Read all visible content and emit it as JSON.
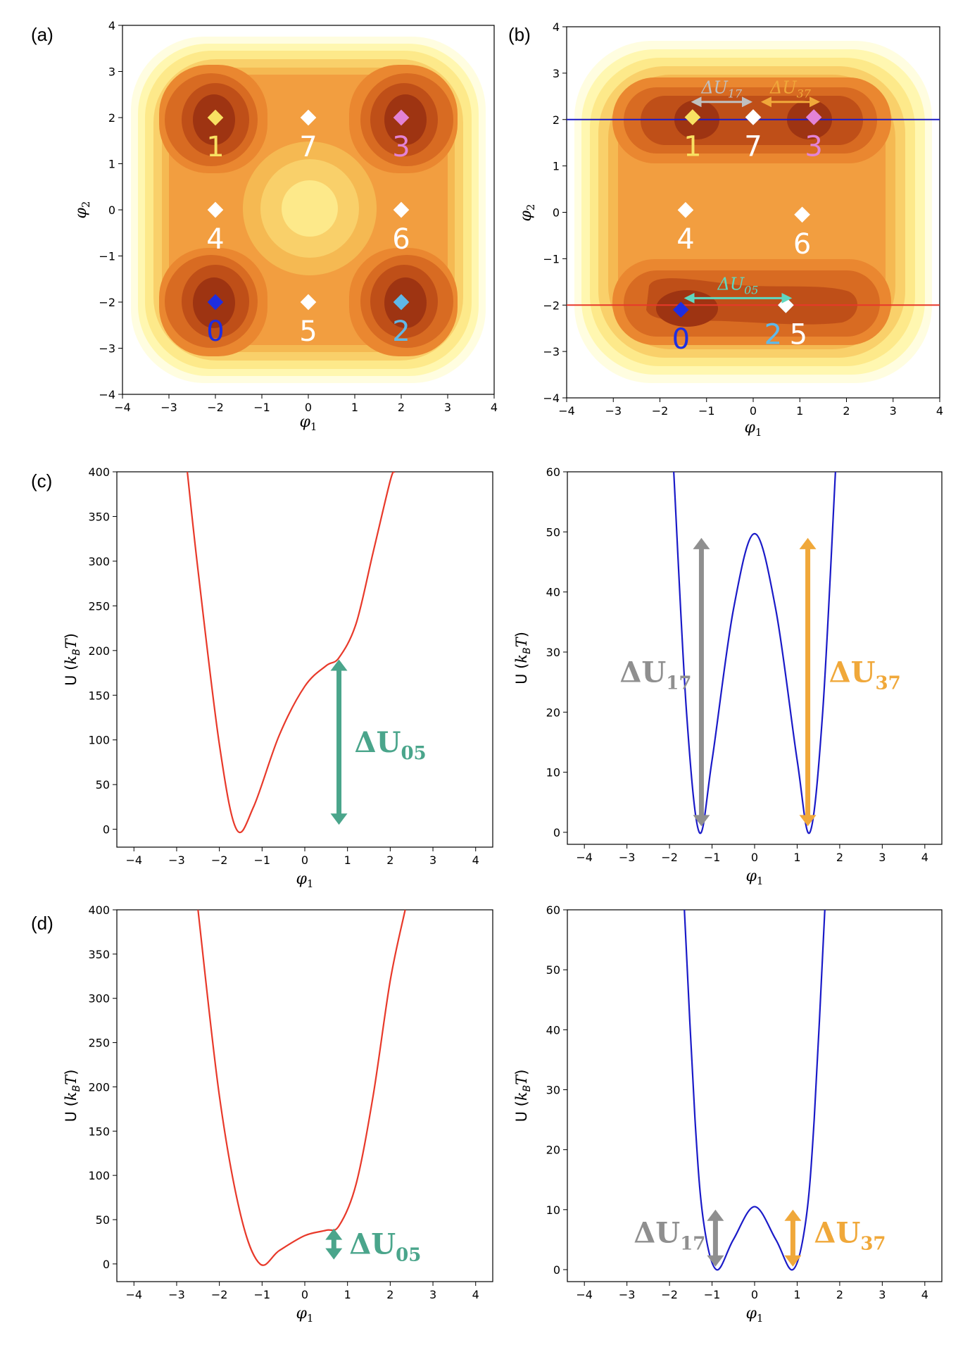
{
  "figure": {
    "panel_labels": [
      "(a)",
      "(b)",
      "(c)",
      "(d)"
    ]
  },
  "colors": {
    "contour_levels": [
      "#fffde0",
      "#fff7b0",
      "#fde98a",
      "#f9d06a",
      "#f5b952",
      "#f29e40",
      "#ea8730",
      "#d86b22",
      "#bf4f18",
      "#9e3412"
    ],
    "red_cut": "#e8392a",
    "blue_cut": "#1a1ac8",
    "teal": "#4aa58b",
    "teal_light": "#5fd8c0",
    "gray": "#8f8f8f",
    "gray_light": "#c0c0c0",
    "orange": "#f0a83a",
    "state_0": "#1f2ee0",
    "state_1": "#f8e162",
    "state_2": "#5fb8e8",
    "state_3": "#e383d6",
    "white": "#ffffff"
  },
  "chart_data": [
    {
      "id": "a",
      "type": "contour",
      "xlabel": "φ1",
      "ylabel": "φ2",
      "xlim": [
        -4,
        4
      ],
      "ylim": [
        -4,
        4
      ],
      "xticks": [
        "−4",
        "−3",
        "−2",
        "−1",
        "0",
        "1",
        "2",
        "3",
        "4"
      ],
      "yticks": [
        "−4",
        "−3",
        "−2",
        "−1",
        "0",
        "1",
        "2",
        "3",
        "4"
      ],
      "states": [
        {
          "label": "0",
          "x": -2,
          "y": -2,
          "color": "state_0"
        },
        {
          "label": "1",
          "x": -2,
          "y": 2,
          "color": "state_1"
        },
        {
          "label": "2",
          "x": 2,
          "y": -2,
          "color": "state_2"
        },
        {
          "label": "3",
          "x": 2,
          "y": 2,
          "color": "state_3"
        },
        {
          "label": "4",
          "x": -2,
          "y": 0,
          "color": "white"
        },
        {
          "label": "5",
          "x": 0,
          "y": -2,
          "color": "white"
        },
        {
          "label": "6",
          "x": 2,
          "y": 0,
          "color": "white"
        },
        {
          "label": "7",
          "x": 0,
          "y": 2,
          "color": "white"
        }
      ]
    },
    {
      "id": "b",
      "type": "contour",
      "xlabel": "φ1",
      "ylabel": "φ2",
      "xlim": [
        -4,
        4
      ],
      "ylim": [
        -4,
        4
      ],
      "xticks": [
        "−4",
        "−3",
        "−2",
        "−1",
        "0",
        "1",
        "2",
        "3",
        "4"
      ],
      "yticks": [
        "−4",
        "−3",
        "−2",
        "−1",
        "0",
        "1",
        "2",
        "3",
        "4"
      ],
      "cut_lines": [
        {
          "y": 2,
          "color": "blue_cut"
        },
        {
          "y": -2,
          "color": "red_cut"
        }
      ],
      "states": [
        {
          "label": "0",
          "x": -1.55,
          "y": -2.1,
          "color": "state_0"
        },
        {
          "label": "1",
          "x": -1.3,
          "y": 2.05,
          "color": "state_1"
        },
        {
          "label": "2",
          "x": 0.7,
          "y": -2.0,
          "color": "state_2"
        },
        {
          "label": "3",
          "x": 1.3,
          "y": 2.05,
          "color": "state_3"
        },
        {
          "label": "4",
          "x": -1.45,
          "y": 0.05,
          "color": "white"
        },
        {
          "label": "5",
          "x": 0.7,
          "y": -2.0,
          "color": "white"
        },
        {
          "label": "6",
          "x": 1.05,
          "y": -0.05,
          "color": "white"
        },
        {
          "label": "7",
          "x": 0.0,
          "y": 2.05,
          "color": "white"
        }
      ],
      "annotations": [
        {
          "text_main": "ΔU",
          "text_sub": "17",
          "from": [
            -1.35,
            2.38
          ],
          "to": [
            0.0,
            2.38
          ],
          "color": "gray_light"
        },
        {
          "text_main": "ΔU",
          "text_sub": "37",
          "from": [
            0.15,
            2.38
          ],
          "to": [
            1.45,
            2.38
          ],
          "color": "orange"
        },
        {
          "text_main": "ΔU",
          "text_sub": "05",
          "from": [
            -1.5,
            -1.85
          ],
          "to": [
            0.85,
            -1.85
          ],
          "color": "teal_light"
        }
      ]
    },
    {
      "id": "c_left",
      "type": "line",
      "xlabel": "φ1",
      "ylabel": "U (kBT)",
      "xlim": [
        -4.4,
        4.4
      ],
      "ylim": [
        -20,
        400
      ],
      "xticks": [
        -4,
        -3,
        -2,
        -1,
        0,
        1,
        2,
        3,
        4
      ],
      "yticks": [
        0,
        50,
        100,
        150,
        200,
        250,
        300,
        350,
        400
      ],
      "curve": "U(x,-2) − min",
      "color": "red_cut",
      "series": [
        {
          "x": [
            -2.75,
            -2.5,
            -2.0,
            -1.6,
            -1.2,
            -0.6,
            0,
            0.5,
            0.8,
            1.2,
            1.6,
            2.0,
            2.1
          ],
          "y": [
            400,
            290,
            95,
            0,
            25,
            105,
            160,
            183,
            192,
            230,
            310,
            390,
            400
          ]
        }
      ],
      "arrow": {
        "text_main": "ΔU",
        "text_sub": "05",
        "x": 0.8,
        "y_from": 5,
        "y_to": 190,
        "color": "teal"
      }
    },
    {
      "id": "c_right",
      "type": "line",
      "xlabel": "φ1",
      "ylabel": "U (kBT)",
      "xlim": [
        -4.4,
        4.4
      ],
      "ylim": [
        -2,
        60
      ],
      "xticks": [
        -4,
        -3,
        -2,
        -1,
        0,
        1,
        2,
        3,
        4
      ],
      "yticks": [
        0,
        10,
        20,
        30,
        40,
        50,
        60
      ],
      "curve": "U(x,2) − min",
      "color": "blue_cut",
      "series": [
        {
          "x": [
            -1.9,
            -1.6,
            -1.3,
            -1.0,
            -0.5,
            0,
            0.5,
            1.0,
            1.3,
            1.6,
            1.9
          ],
          "y": [
            60,
            20,
            0,
            12,
            37,
            49.7,
            37,
            12,
            0,
            20,
            60
          ]
        }
      ],
      "arrows": [
        {
          "text_main": "ΔU",
          "text_sub": "17",
          "x": -1.25,
          "y_from": 1,
          "y_to": 49,
          "color": "gray",
          "label_side": "left"
        },
        {
          "text_main": "ΔU",
          "text_sub": "37",
          "x": 1.25,
          "y_from": 1,
          "y_to": 49,
          "color": "orange",
          "label_side": "right"
        }
      ]
    },
    {
      "id": "d_left",
      "type": "line",
      "xlabel": "φ1",
      "ylabel": "U (kBT)",
      "xlim": [
        -4.4,
        4.4
      ],
      "ylim": [
        -20,
        400
      ],
      "xticks": [
        -4,
        -3,
        -2,
        -1,
        0,
        1,
        2,
        3,
        4
      ],
      "yticks": [
        0,
        50,
        100,
        150,
        200,
        250,
        300,
        350,
        400
      ],
      "curve": "U(x,-2) − min, weaker coupling",
      "color": "red_cut",
      "series": [
        {
          "x": [
            -2.5,
            -2.0,
            -1.5,
            -1.05,
            -0.6,
            0,
            0.5,
            0.8,
            1.2,
            1.6,
            2.0,
            2.35
          ],
          "y": [
            400,
            190,
            55,
            0,
            15,
            32,
            38,
            43,
            90,
            190,
            320,
            400
          ]
        }
      ],
      "arrow": {
        "text_main": "ΔU",
        "text_sub": "05",
        "x": 0.68,
        "y_from": 5,
        "y_to": 40,
        "color": "teal"
      }
    },
    {
      "id": "d_right",
      "type": "line",
      "xlabel": "φ1",
      "ylabel": "U (kBT)",
      "xlim": [
        -4.4,
        4.4
      ],
      "ylim": [
        -2,
        60
      ],
      "xticks": [
        -4,
        -3,
        -2,
        -1,
        0,
        1,
        2,
        3,
        4
      ],
      "yticks": [
        0,
        10,
        20,
        30,
        40,
        50,
        60
      ],
      "curve": "U(x,2) − min, weaker coupling",
      "color": "blue_cut",
      "series": [
        {
          "x": [
            -1.65,
            -1.4,
            -1.2,
            -0.9,
            -0.5,
            0,
            0.5,
            0.9,
            1.2,
            1.4,
            1.65
          ],
          "y": [
            60,
            25,
            8,
            0,
            5,
            10.5,
            5,
            0,
            8,
            25,
            60
          ]
        }
      ],
      "arrows": [
        {
          "text_main": "ΔU",
          "text_sub": "17",
          "x": -0.92,
          "y_from": 0.5,
          "y_to": 10,
          "color": "gray",
          "label_side": "left"
        },
        {
          "text_main": "ΔU",
          "text_sub": "37",
          "x": 0.9,
          "y_from": 0.5,
          "y_to": 10,
          "color": "orange",
          "label_side": "right"
        }
      ]
    }
  ]
}
